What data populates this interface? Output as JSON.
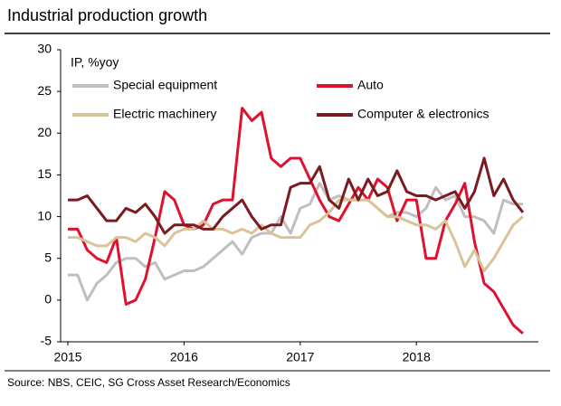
{
  "chart_data": {
    "type": "line",
    "title": "Industrial production growth",
    "ylabel": "IP, %yoy",
    "source": "Source: NBS, CEIC, SG Cross Asset Research/Economics",
    "x": [
      0,
      1,
      2,
      3,
      4,
      5,
      6,
      7,
      8,
      9,
      10,
      11,
      12,
      13,
      14,
      15,
      16,
      17,
      18,
      19,
      20,
      21,
      22,
      23,
      24,
      25,
      26,
      27,
      28,
      29,
      30,
      31,
      32,
      33,
      34,
      35,
      36,
      37,
      38,
      39,
      40,
      41,
      42,
      43,
      44,
      45,
      46,
      47
    ],
    "xlim": [
      -0.75,
      48.6
    ],
    "xticks": [
      {
        "value": 0,
        "label": "2015"
      },
      {
        "value": 12,
        "label": "2016"
      },
      {
        "value": 24,
        "label": "2017"
      },
      {
        "value": 36,
        "label": "2018"
      }
    ],
    "ylim": [
      -5,
      30
    ],
    "yticks": [
      -5,
      0,
      5,
      10,
      15,
      20,
      25,
      30
    ],
    "series": [
      {
        "name": "Special equipment",
        "color": "#bfbfbf",
        "values": [
          3,
          3,
          0,
          2,
          3,
          4.5,
          5,
          5,
          4,
          4.5,
          2.5,
          3,
          3.5,
          3.5,
          4,
          5,
          6,
          7,
          5.5,
          7.5,
          8,
          8,
          10,
          8,
          11,
          11.5,
          14,
          12,
          12.5,
          12,
          12,
          12,
          11,
          10,
          10.5,
          10.5,
          10,
          11,
          13.5,
          12,
          12.5,
          10,
          10,
          9.5,
          8,
          12,
          11.5,
          11.5
        ]
      },
      {
        "name": "Auto",
        "color": "#e0102f",
        "values": [
          8.5,
          8.5,
          6,
          5,
          4.5,
          7.5,
          -0.5,
          0,
          2.5,
          7.5,
          13,
          12,
          9,
          8.5,
          9,
          11.5,
          12,
          12,
          23,
          21.5,
          22.5,
          17,
          16,
          17,
          17,
          14.5,
          12,
          10,
          9.5,
          11.5,
          13.5,
          12,
          14.5,
          13.5,
          9.5,
          12,
          12,
          5,
          5,
          9.5,
          11.5,
          14,
          7,
          2,
          1,
          -1,
          -3,
          -4
        ]
      },
      {
        "name": "Electric machinery",
        "color": "#d9c49a",
        "values": [
          7.5,
          7.5,
          7,
          6.5,
          6.5,
          7.5,
          7.5,
          7,
          8,
          7.5,
          6.5,
          8,
          8.5,
          8.5,
          9.5,
          8.5,
          8.5,
          8,
          8.5,
          8,
          9,
          8,
          7.5,
          7.5,
          7.5,
          9,
          9.5,
          10.5,
          12,
          12,
          12,
          12,
          11,
          10,
          10,
          9.5,
          9,
          9,
          8.5,
          9.5,
          7,
          4,
          6,
          3.5,
          5,
          7,
          9,
          10
        ]
      },
      {
        "name": "Computer & electronics",
        "color": "#7b1a1f",
        "values": [
          12,
          12,
          12.5,
          11,
          9.5,
          9.5,
          11,
          10.5,
          11.5,
          10,
          8,
          9,
          9,
          9,
          8.5,
          8.5,
          10,
          11,
          12,
          10,
          8.5,
          9,
          9,
          13.5,
          14,
          14,
          16,
          12,
          11,
          14.5,
          12,
          14.5,
          12.5,
          13,
          15.5,
          13,
          12.5,
          12.5,
          12,
          12.5,
          13,
          11,
          13,
          17,
          12.5,
          14.5,
          12,
          10.5
        ]
      }
    ]
  }
}
